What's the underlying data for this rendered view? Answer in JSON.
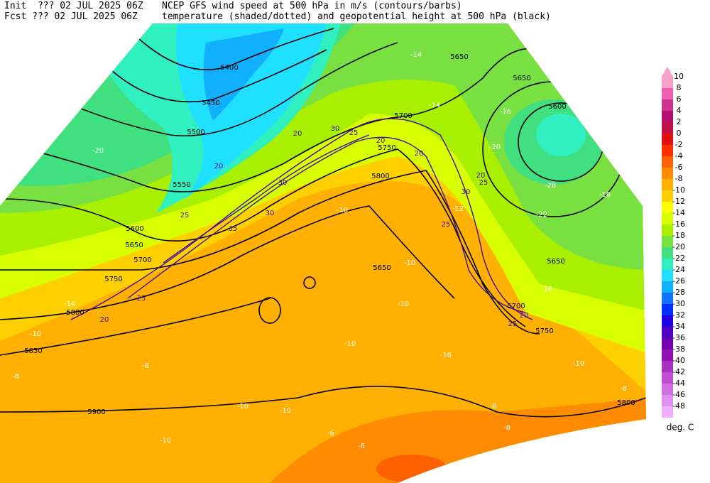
{
  "header": {
    "init": "Init  ??? 02 JUL 2025 06Z",
    "fcst": "Fcst ??? 02 JUL 2025 06Z",
    "line1": "NCEP GFS wind speed at 500 hPa in m/s (contours/barbs)",
    "line2": "temperature (shaded/dotted) and geopotential height at 500 hPa (black)"
  },
  "colorbar": {
    "levels": [
      10,
      8,
      6,
      4,
      2,
      0,
      -2,
      -4,
      -6,
      -8,
      -10,
      -12,
      -14,
      -16,
      -18,
      -20,
      -22,
      -24,
      -26,
      -28,
      -30,
      -32,
      -34,
      -36,
      -38,
      -40,
      -42,
      -44,
      -46,
      -48
    ],
    "colors": [
      "#f7a0c8",
      "#f060b0",
      "#d03090",
      "#b01070",
      "#c0104a",
      "#e01010",
      "#ff3000",
      "#ff6000",
      "#ff8c00",
      "#ffb000",
      "#ffd000",
      "#ffff00",
      "#d8ff00",
      "#a8f000",
      "#78e040",
      "#40e080",
      "#30f0c0",
      "#20e0ff",
      "#10b0ff",
      "#1070ff",
      "#0030ff",
      "#2000e0",
      "#5000c0",
      "#7000b0",
      "#9010b0",
      "#a830c0",
      "#c050d0",
      "#d070e0",
      "#e090f0",
      "#f0b0ff"
    ],
    "unit": "deg. C"
  },
  "height_labels": [
    "5400",
    "5450",
    "5500",
    "5550",
    "5600",
    "5650",
    "5700",
    "5750",
    "5800",
    "5850",
    "5900",
    "5650",
    "5650",
    "5600",
    "5700",
    "5750",
    "5800",
    "5650",
    "5650",
    "5700",
    "5750",
    "5800"
  ],
  "temp_labels": [
    "-14",
    "-16",
    "-14",
    "-20",
    "-20",
    "-28",
    "-16",
    "-22",
    "-16",
    "-14",
    "-10",
    "-8",
    "-8",
    "-10",
    "-10",
    "-10",
    "-6",
    "-6",
    "-8",
    "-8",
    "-10",
    "-8",
    "-16",
    "-10",
    "-10",
    "-10",
    "-10",
    "-12"
  ],
  "wind_labels": [
    "20",
    "25",
    "30",
    "35",
    "30",
    "20",
    "25",
    "25",
    "20",
    "25",
    "30",
    "20",
    "20",
    "25",
    "20",
    "25",
    "30",
    "20"
  ]
}
